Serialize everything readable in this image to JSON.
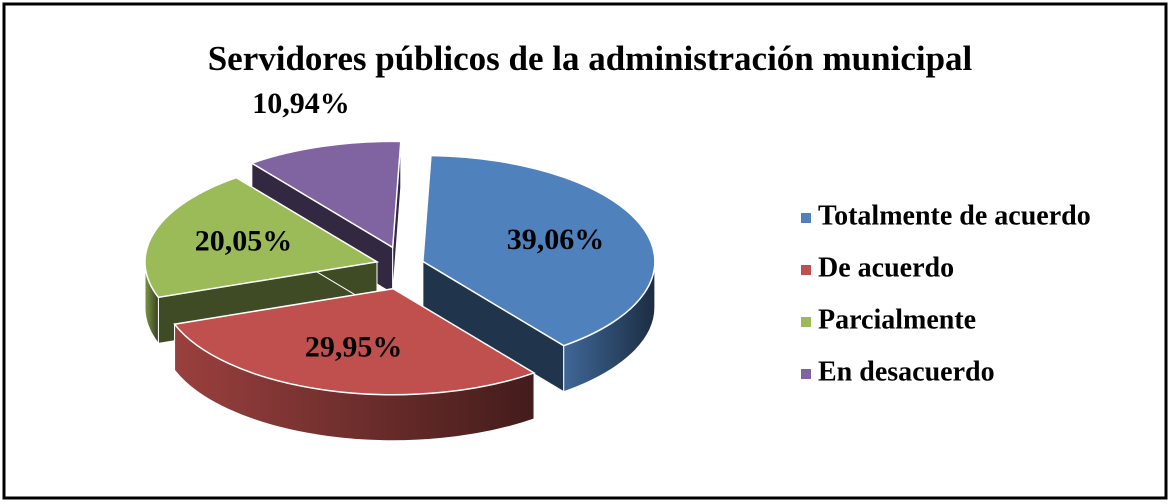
{
  "chart_data": {
    "type": "pie",
    "title": "Servidores públicos de la administración municipal",
    "categories": [
      "Totalmente de acuerdo",
      "De acuerdo",
      "Parcialmente",
      "En desacuerdo"
    ],
    "values": [
      39.06,
      29.95,
      20.05,
      10.94
    ],
    "value_labels": [
      "39,06%",
      "29,95%",
      "20,05%",
      "10,94%"
    ],
    "colors": [
      "#4f81bd",
      "#c0504d",
      "#9bbb59",
      "#8064a2"
    ],
    "legend": "right"
  }
}
